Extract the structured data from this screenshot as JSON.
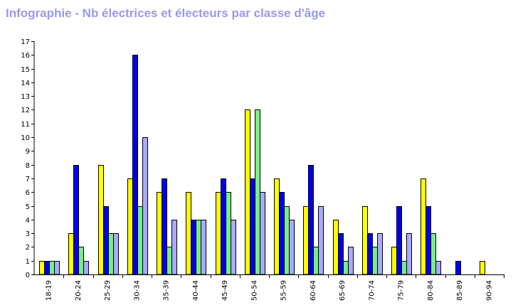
{
  "chart_data": {
    "type": "bar",
    "title": "Infographie - Nb électrices et électeurs par classe d'âge",
    "categories": [
      "18-19",
      "20-24",
      "25-29",
      "30-34",
      "35-39",
      "40-44",
      "45-49",
      "50-54",
      "55-59",
      "60-64",
      "65-69",
      "70-74",
      "75-79",
      "80-84",
      "85-89",
      "90-94"
    ],
    "series": [
      {
        "color": "#ffff00",
        "values": [
          1,
          3,
          8,
          7,
          6,
          6,
          6,
          12,
          7,
          5,
          4,
          5,
          2,
          7,
          0,
          1
        ]
      },
      {
        "color": "#0000ee",
        "values": [
          1,
          8,
          5,
          16,
          7,
          4,
          7,
          7,
          6,
          8,
          3,
          3,
          5,
          5,
          1,
          0
        ]
      },
      {
        "color": "#77ee88",
        "values": [
          1,
          2,
          3,
          5,
          2,
          4,
          6,
          12,
          5,
          2,
          1,
          2,
          1,
          3,
          0,
          0
        ]
      },
      {
        "color": "#aaaaff",
        "values": [
          1,
          1,
          3,
          10,
          4,
          4,
          4,
          6,
          4,
          5,
          2,
          3,
          3,
          1,
          0,
          0
        ]
      }
    ],
    "ylim": [
      0,
      17
    ],
    "yticks": [
      0,
      1,
      2,
      3,
      4,
      5,
      6,
      7,
      8,
      9,
      10,
      11,
      12,
      13,
      14,
      15,
      16,
      17
    ],
    "xlabel": "",
    "ylabel": "",
    "grid": false,
    "legend": "none"
  }
}
